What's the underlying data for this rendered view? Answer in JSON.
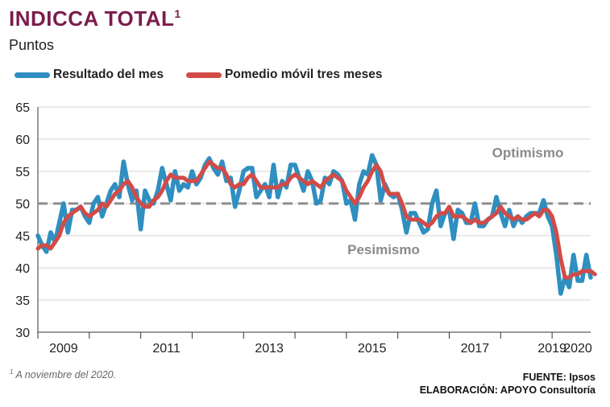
{
  "header": {
    "title": "INDICCA TOTAL",
    "title_sup": "1",
    "subtitle": "Puntos"
  },
  "chart_data": {
    "type": "line",
    "y_range": [
      30,
      65
    ],
    "y_ticks": [
      30,
      35,
      40,
      45,
      50,
      55,
      60,
      65
    ],
    "x_tick_labels": [
      "2009",
      "2011",
      "2013",
      "2015",
      "2017",
      "2019",
      "2020"
    ],
    "threshold": {
      "value": 50,
      "style": "dashed",
      "color": "#8c8c8c"
    },
    "annotations": {
      "upper": "Optimismo",
      "lower": "Pesimismo"
    },
    "grid": "horizontal",
    "legend_position": "top-left",
    "series": [
      {
        "name": "Resultado del mes",
        "color": "#2e8fc0",
        "values": [
          45,
          43.5,
          42.5,
          45.5,
          44,
          47,
          50,
          45.5,
          49,
          49,
          49.5,
          48,
          47,
          50,
          51,
          48,
          50,
          52,
          53,
          51,
          56.5,
          53,
          50.5,
          52,
          46,
          52,
          50.5,
          50,
          52,
          55.5,
          53,
          50.5,
          55,
          52,
          53,
          52.5,
          55,
          53,
          54,
          56,
          57,
          55.5,
          54.5,
          56.5,
          53.5,
          54,
          49.5,
          52,
          55,
          55.5,
          55.5,
          51,
          52,
          53,
          51,
          56,
          51,
          53.5,
          52.5,
          56,
          56,
          54,
          52,
          55,
          53.5,
          50,
          50.5,
          54,
          53,
          55,
          54.5,
          53.5,
          50,
          50.5,
          47.5,
          53,
          55,
          54.5,
          57.5,
          56,
          50.5,
          53,
          51.5,
          51,
          51.5,
          49,
          45.5,
          48.5,
          48.5,
          47,
          45.5,
          46,
          50,
          52,
          46.5,
          48.5,
          49,
          44.5,
          49,
          48.5,
          47,
          47,
          50,
          46.5,
          46.5,
          47.5,
          48,
          51,
          48.5,
          46.5,
          49,
          46.5,
          48,
          47,
          48,
          48.5,
          48.5,
          48.5,
          50.5,
          48,
          46.5,
          42,
          36,
          38.5,
          37,
          42,
          38,
          38,
          42,
          38.5
        ]
      },
      {
        "name": "Pomedio móvil tres meses",
        "color": "#d24b47",
        "values": [
          43,
          43.5,
          43.5,
          43,
          44,
          45,
          47,
          48,
          48.5,
          49,
          49.5,
          48.5,
          48,
          48.5,
          49,
          50,
          49.5,
          50.5,
          51.5,
          52,
          53,
          53.5,
          52.5,
          51,
          50,
          49.5,
          49.5,
          50.5,
          51,
          52,
          53.5,
          54.5,
          54,
          54,
          54,
          53.5,
          53.5,
          53.5,
          54.5,
          55.5,
          56.5,
          56,
          55.5,
          55.5,
          54.5,
          53,
          52.5,
          53,
          53,
          54,
          54.5,
          53.5,
          52.5,
          52.5,
          52.5,
          52.5,
          52.5,
          53,
          53,
          54,
          54.5,
          54,
          53.5,
          53,
          53.5,
          53,
          52.5,
          53.5,
          54,
          54.5,
          54,
          53.5,
          52,
          51,
          50,
          51,
          52.5,
          53.5,
          55,
          56,
          55,
          52.5,
          51.5,
          51.5,
          51.5,
          50,
          48,
          47.5,
          47.5,
          47.5,
          47,
          46.5,
          47,
          48,
          48.5,
          48.5,
          49.5,
          48,
          48,
          48,
          47.5,
          47,
          47.5,
          47,
          47,
          47.5,
          48,
          48.5,
          49.5,
          48.5,
          48,
          47.5,
          48,
          47.5,
          47.5,
          48,
          48.5,
          48,
          49,
          49,
          48,
          45.5,
          41.5,
          38.5,
          38.5,
          39,
          39,
          39.5,
          39.5,
          39.5,
          39
        ]
      }
    ]
  },
  "footer": {
    "footnote_sup": "1",
    "footnote": " A noviembre del 2020.",
    "source_line1": "FUENTE: Ipsos",
    "source_line2": "ELABORACIÓN: APOYO Consultoría"
  }
}
